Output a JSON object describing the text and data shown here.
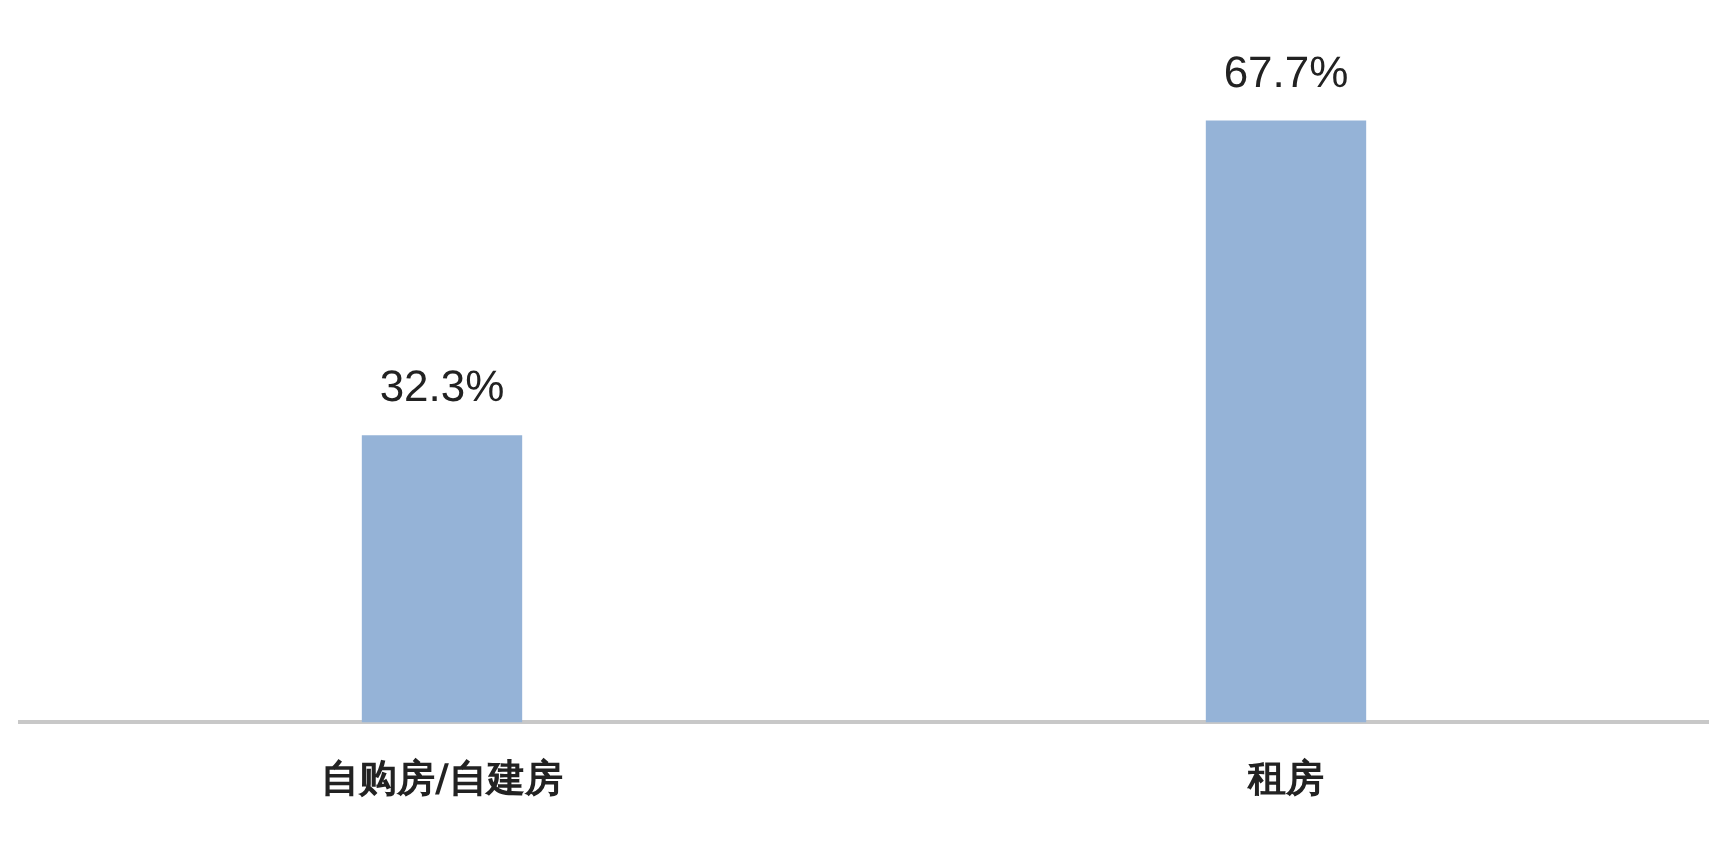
{
  "chart_data": {
    "type": "bar",
    "categories": [
      "自购房/自建房",
      "租房"
    ],
    "values": [
      32.3,
      67.7
    ],
    "color": "#95b3d7",
    "value_labels": [
      "32.3%",
      "67.7%"
    ],
    "grid": false,
    "legend": false,
    "tick_labels": "x"
  }
}
